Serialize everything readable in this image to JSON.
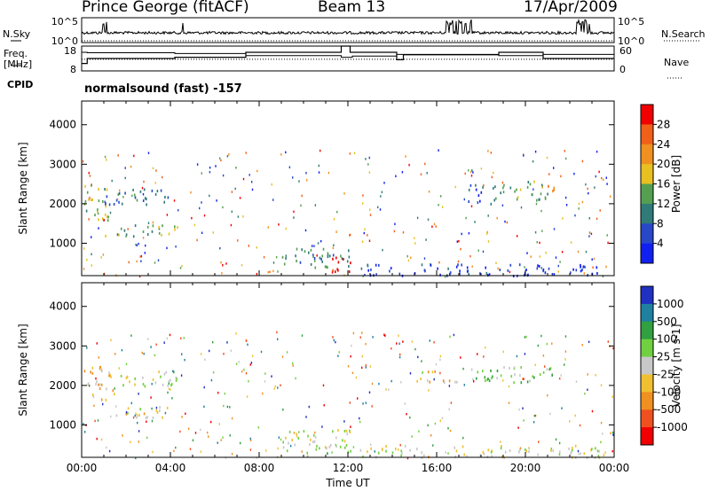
{
  "header": {
    "station": "Prince George (fitACF)",
    "beam": "Beam 13",
    "date": "17/Apr/2009"
  },
  "side_labels": {
    "nsky": "N.Sky",
    "nsearch": "N.Search",
    "freq_line1": "Freq.",
    "freq_line2": "[MHz]",
    "nave": "Nave",
    "cpid": "CPID"
  },
  "program": "normalsound (fast) -157",
  "chart_data": [
    {
      "type": "line",
      "name": "noise-panel",
      "left_ticks": [
        "10^5",
        "10^0"
      ],
      "right_ticks": [
        "10^5",
        "10^0"
      ],
      "x_range_hours": [
        0,
        24
      ],
      "note": "N.Sky (solid) near 10^1 with spikes near 01:00, 16:30-17:30, 22:30; N.Search dotted at baseline"
    },
    {
      "type": "line",
      "name": "frequency-nave-panel",
      "left_ticks": [
        "18",
        "8"
      ],
      "right_ticks": [
        "60",
        "0"
      ],
      "freq_steps": [
        [
          0,
          11
        ],
        [
          0.25,
          13
        ],
        [
          4.1,
          13
        ],
        [
          4.2,
          13.5
        ],
        [
          7.3,
          13.5
        ],
        [
          7.4,
          15.5
        ],
        [
          11.6,
          15.5
        ],
        [
          11.7,
          18
        ],
        [
          12.0,
          18
        ],
        [
          12.1,
          15.5
        ],
        [
          14.1,
          15.5
        ],
        [
          14.2,
          12.5
        ],
        [
          14.4,
          12.5
        ],
        [
          14.5,
          14.5
        ],
        [
          18.7,
          14.5
        ],
        [
          18.8,
          15.5
        ],
        [
          20.7,
          15.5
        ],
        [
          20.8,
          13
        ],
        [
          24,
          13
        ]
      ],
      "nave_steps": [
        [
          0,
          45
        ],
        [
          0.25,
          44
        ],
        [
          4.1,
          44
        ],
        [
          4.2,
          42
        ],
        [
          7.3,
          42
        ],
        [
          7.4,
          37
        ],
        [
          11.6,
          37
        ],
        [
          11.7,
          33
        ],
        [
          12.1,
          33
        ],
        [
          12.2,
          36
        ],
        [
          14.1,
          36
        ],
        [
          14.2,
          40
        ],
        [
          18.7,
          40
        ],
        [
          18.8,
          37
        ],
        [
          20.7,
          37
        ],
        [
          20.8,
          40
        ],
        [
          24,
          40
        ]
      ]
    },
    {
      "type": "heatmap",
      "name": "power",
      "ylabel": "Slant Range [km]",
      "yticks": [
        1000,
        2000,
        3000,
        4000
      ],
      "ylim": [
        180,
        4600
      ],
      "xlim_hours": [
        0,
        24
      ],
      "colorbar_label": "Power [dB]",
      "colorbar_ticks": [
        "4",
        "8",
        "12",
        "16",
        "20",
        "24",
        "28"
      ],
      "colorbar_colors": [
        "#1020f0",
        "#2848c8",
        "#307a78",
        "#55a050",
        "#e8c020",
        "#f09020",
        "#f06018",
        "#f00000"
      ],
      "echo_regions": [
        {
          "t": [
            0.1,
            1.3
          ],
          "r": [
            1600,
            2500
          ],
          "db": 16
        },
        {
          "t": [
            1.0,
            4.2
          ],
          "r": [
            2000,
            2400
          ],
          "db": 10
        },
        {
          "t": [
            1.0,
            4.3
          ],
          "r": [
            1200,
            1500
          ],
          "db": 14
        },
        {
          "t": [
            9.0,
            12.2
          ],
          "r": [
            400,
            900
          ],
          "db": 12
        },
        {
          "t": [
            11.0,
            12.2
          ],
          "r": [
            300,
            700
          ],
          "db": 28
        },
        {
          "t": [
            12.5,
            23.6
          ],
          "r": [
            200,
            500
          ],
          "db": 6
        },
        {
          "t": [
            17.4,
            18.6
          ],
          "r": [
            2000,
            2500
          ],
          "db": 8
        },
        {
          "t": [
            18.6,
            21.0
          ],
          "r": [
            2100,
            2600
          ],
          "db": 14
        },
        {
          "t": [
            20.8,
            21.4
          ],
          "r": [
            2200,
            2500
          ],
          "db": 22
        }
      ]
    },
    {
      "type": "heatmap",
      "name": "velocity",
      "ylabel": "Slant Range [km]",
      "yticks": [
        1000,
        2000,
        3000,
        4000
      ],
      "ylim": [
        180,
        4600
      ],
      "xlim_hours": [
        0,
        24
      ],
      "colorbar_label": "Velocity [m s-1]",
      "colorbar_ticks": [
        "1000",
        "500",
        "100",
        "25",
        "-25",
        "-100",
        "-500",
        "-1000"
      ],
      "colorbar_colors": [
        "#2030c0",
        "#2080a0",
        "#30a040",
        "#70d040",
        "#c8c8c8",
        "#f0c030",
        "#f09020",
        "#f05020",
        "#f00000"
      ],
      "echo_regions": [
        {
          "t": [
            0.1,
            1.5
          ],
          "r": [
            1600,
            2500
          ],
          "v": -300
        },
        {
          "t": [
            1.5,
            4.3
          ],
          "r": [
            2000,
            2400
          ],
          "v": 0
        },
        {
          "t": [
            1.0,
            3.9
          ],
          "r": [
            1200,
            1500
          ],
          "v": -150
        },
        {
          "t": [
            9.0,
            12.2
          ],
          "r": [
            300,
            900
          ],
          "v": 80
        },
        {
          "t": [
            12.5,
            23.6
          ],
          "r": [
            200,
            500
          ],
          "v": -60
        },
        {
          "t": [
            17.4,
            21.4
          ],
          "r": [
            2100,
            2500
          ],
          "v": 200
        },
        {
          "t": [
            15.0,
            17.0
          ],
          "r": [
            2100,
            2400
          ],
          "v": -200
        }
      ]
    }
  ],
  "x_axis": {
    "ticks": [
      "00:00",
      "04:00",
      "08:00",
      "12:00",
      "16:00",
      "20:00",
      "00:00"
    ],
    "label": "Time UT"
  },
  "colors": {
    "axis": "#000000",
    "background": "#ffffff"
  }
}
